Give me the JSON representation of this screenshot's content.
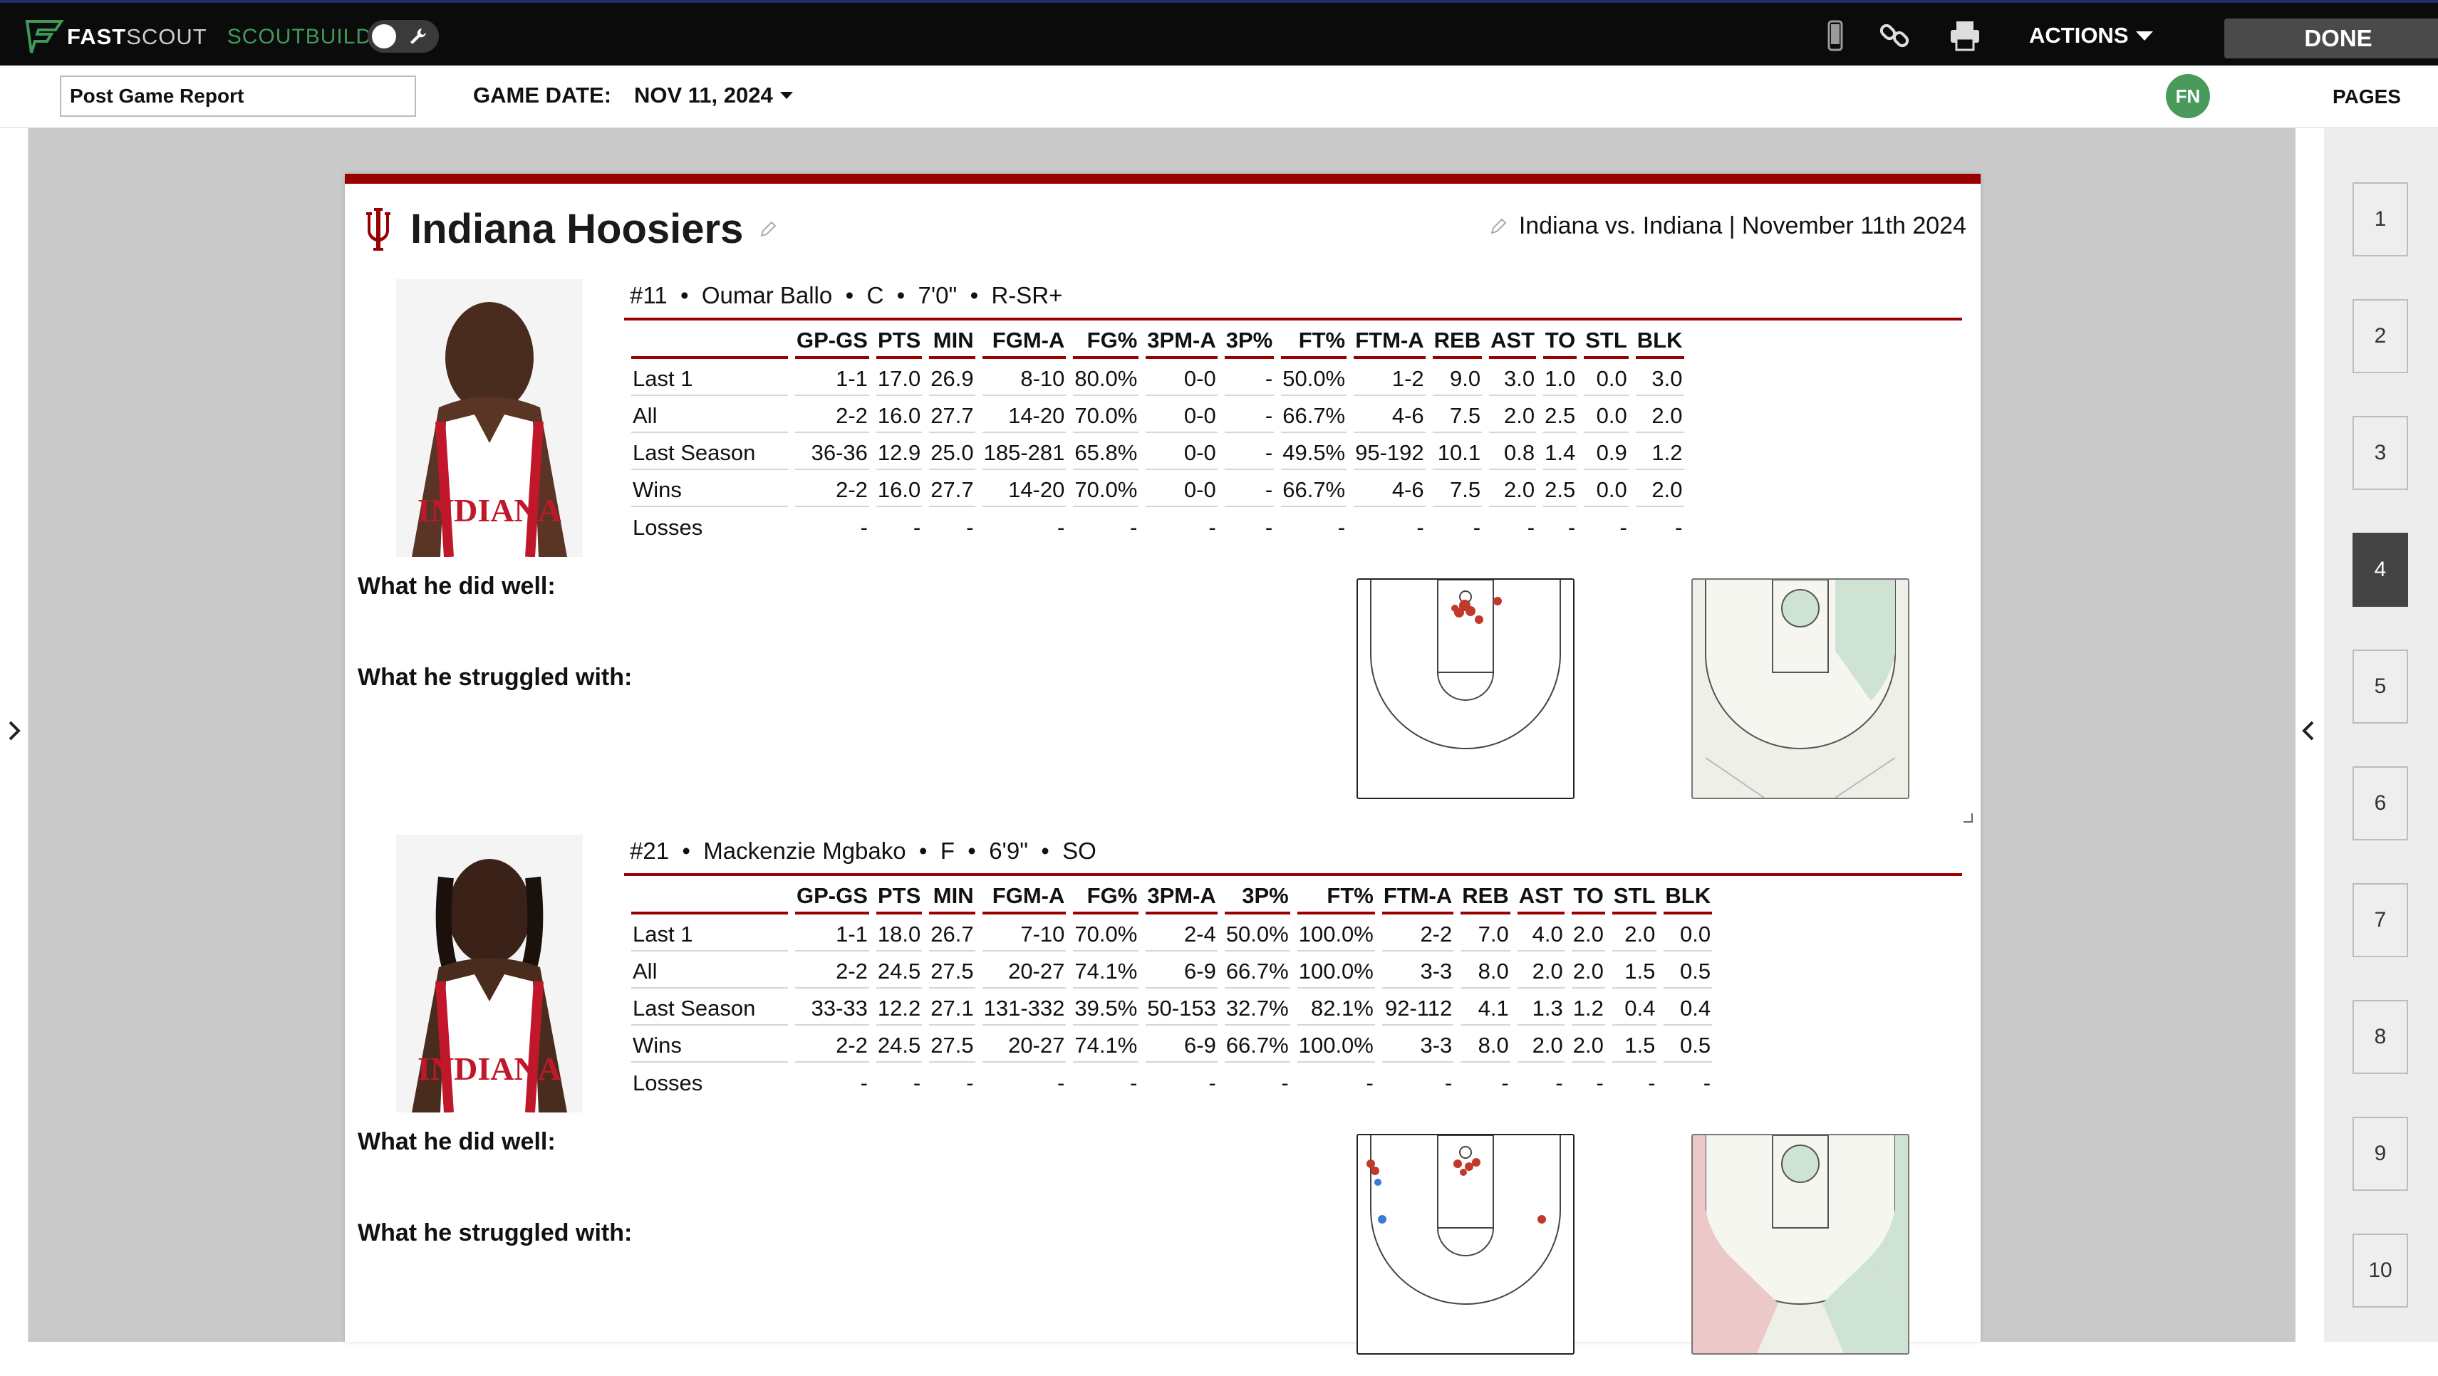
{
  "app": {
    "brand_fast": "FAST",
    "brand_scout": "SCOUT",
    "brand_builder": "SCOUTBUILDER",
    "actions_label": "ACTIONS",
    "done_label": "DONE"
  },
  "toolbar": {
    "icons": [
      "mobile-icon",
      "link-icon",
      "print-icon"
    ]
  },
  "report": {
    "title_value": "Post Game Report",
    "game_date_label": "GAME DATE:",
    "game_date_value": "NOV 11, 2024"
  },
  "user": {
    "initials": "FN"
  },
  "pages": {
    "label": "PAGES",
    "items": [
      "1",
      "2",
      "3",
      "4",
      "5",
      "6",
      "7",
      "8",
      "9",
      "10"
    ],
    "active": "4"
  },
  "header": {
    "team_name": "Indiana Hoosiers",
    "matchup": "Indiana vs. Indiana | November 11th 2024"
  },
  "columns": [
    "GP-GS",
    "PTS",
    "MIN",
    "FGM-A",
    "FG%",
    "3PM-A",
    "3P%",
    "FT%",
    "FTM-A",
    "REB",
    "AST",
    "TO",
    "STL",
    "BLK"
  ],
  "players": [
    {
      "header": "#11  •  Oumar Ballo  •  C  •  7'0\"  •  R-SR+",
      "rows": [
        {
          "label": "Last 1",
          "values": [
            "1-1",
            "17.0",
            "26.9",
            "8-10",
            "80.0%",
            "0-0",
            "-",
            "50.0%",
            "1-2",
            "9.0",
            "3.0",
            "1.0",
            "0.0",
            "3.0"
          ]
        },
        {
          "label": "All",
          "values": [
            "2-2",
            "16.0",
            "27.7",
            "14-20",
            "70.0%",
            "0-0",
            "-",
            "66.7%",
            "4-6",
            "7.5",
            "2.0",
            "2.5",
            "0.0",
            "2.0"
          ]
        },
        {
          "label": "Last Season",
          "values": [
            "36-36",
            "12.9",
            "25.0",
            "185-281",
            "65.8%",
            "0-0",
            "-",
            "49.5%",
            "95-192",
            "10.1",
            "0.8",
            "1.4",
            "0.9",
            "1.2"
          ]
        },
        {
          "label": "Wins",
          "values": [
            "2-2",
            "16.0",
            "27.7",
            "14-20",
            "70.0%",
            "0-0",
            "-",
            "66.7%",
            "4-6",
            "7.5",
            "2.0",
            "2.5",
            "0.0",
            "2.0"
          ]
        },
        {
          "label": "Losses",
          "values": [
            "-",
            "-",
            "-",
            "-",
            "-",
            "-",
            "-",
            "-",
            "-",
            "-",
            "-",
            "-",
            "-",
            "-"
          ]
        }
      ],
      "did_well_label": "What he did well:",
      "struggled_label": "What he struggled with:"
    },
    {
      "header": "#21  •  Mackenzie Mgbako  •  F  •  6'9\"  •  SO",
      "rows": [
        {
          "label": "Last 1",
          "values": [
            "1-1",
            "18.0",
            "26.7",
            "7-10",
            "70.0%",
            "2-4",
            "50.0%",
            "100.0%",
            "2-2",
            "7.0",
            "4.0",
            "2.0",
            "2.0",
            "0.0"
          ]
        },
        {
          "label": "All",
          "values": [
            "2-2",
            "24.5",
            "27.5",
            "20-27",
            "74.1%",
            "6-9",
            "66.7%",
            "100.0%",
            "3-3",
            "8.0",
            "2.0",
            "2.0",
            "1.5",
            "0.5"
          ]
        },
        {
          "label": "Last Season",
          "values": [
            "33-33",
            "12.2",
            "27.1",
            "131-332",
            "39.5%",
            "50-153",
            "32.7%",
            "82.1%",
            "92-112",
            "4.1",
            "1.3",
            "1.2",
            "0.4",
            "0.4"
          ]
        },
        {
          "label": "Wins",
          "values": [
            "2-2",
            "24.5",
            "27.5",
            "20-27",
            "74.1%",
            "6-9",
            "66.7%",
            "100.0%",
            "3-3",
            "8.0",
            "2.0",
            "2.0",
            "1.5",
            "0.5"
          ]
        },
        {
          "label": "Losses",
          "values": [
            "-",
            "-",
            "-",
            "-",
            "-",
            "-",
            "-",
            "-",
            "-",
            "-",
            "-",
            "-",
            "-",
            "-"
          ]
        }
      ],
      "did_well_label": "What he did well:",
      "struggled_label": "What he struggled with:"
    }
  ],
  "colors": {
    "accent": "#990000",
    "topbar": "#0b0b0b",
    "brand_green": "#3f9a5a",
    "canvas": "#c9c9c9"
  }
}
